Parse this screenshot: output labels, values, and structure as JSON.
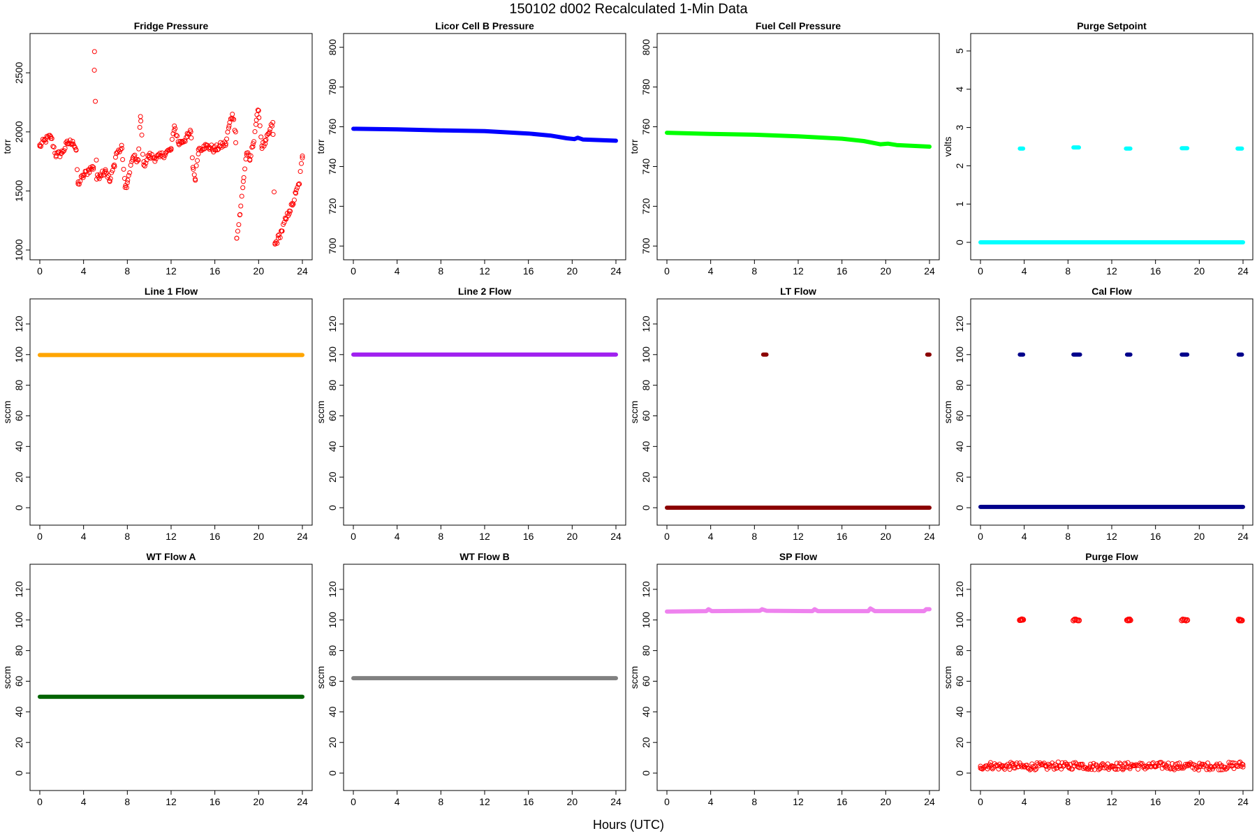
{
  "figure": {
    "title": "150102   d002   Recalculated 1-Min Data",
    "xlabel": "Hours (UTC)"
  },
  "chart_data": [
    {
      "type": "scatter",
      "title": "Fridge Pressure",
      "ylabel": "torr",
      "color": "#ff0000",
      "marker": "open-circle",
      "xlim": [
        0,
        24
      ],
      "ylim": [
        1000,
        2750
      ],
      "xticks": [
        0,
        4,
        8,
        12,
        16,
        20,
        24
      ],
      "yticks": [
        1000,
        1500,
        2000,
        2500
      ],
      "series": [
        {
          "points": [
            [
              0,
              1880
            ],
            [
              0.5,
              1930
            ],
            [
              1,
              1960
            ],
            [
              1.5,
              1800
            ],
            [
              2,
              1820
            ],
            [
              2.5,
              1900
            ],
            [
              3,
              1920
            ],
            [
              3.3,
              1850
            ],
            [
              3.5,
              1560
            ],
            [
              4,
              1630
            ],
            [
              4.5,
              1680
            ],
            [
              4.9,
              1700
            ],
            [
              5,
              2680
            ],
            [
              5.2,
              1600
            ],
            [
              5.5,
              1640
            ],
            [
              6,
              1680
            ],
            [
              6.4,
              1580
            ],
            [
              6.8,
              1720
            ],
            [
              7,
              1820
            ],
            [
              7.5,
              1860
            ],
            [
              7.8,
              1530
            ],
            [
              8,
              1570
            ],
            [
              8.5,
              1780
            ],
            [
              9,
              1760
            ],
            [
              9.2,
              2130
            ],
            [
              9.5,
              1720
            ],
            [
              10,
              1800
            ],
            [
              10.5,
              1780
            ],
            [
              11,
              1790
            ],
            [
              11.5,
              1820
            ],
            [
              12,
              1850
            ],
            [
              12.3,
              2050
            ],
            [
              12.7,
              1900
            ],
            [
              13,
              1920
            ],
            [
              13.5,
              1960
            ],
            [
              13.8,
              2000
            ],
            [
              14,
              1700
            ],
            [
              14.2,
              1600
            ],
            [
              14.5,
              1850
            ],
            [
              15,
              1880
            ],
            [
              15.5,
              1870
            ],
            [
              16,
              1850
            ],
            [
              16.5,
              1880
            ],
            [
              17,
              1900
            ],
            [
              17.3,
              2050
            ],
            [
              17.6,
              2150
            ],
            [
              17.9,
              2000
            ],
            [
              18,
              1100
            ],
            [
              18.3,
              1300
            ],
            [
              18.6,
              1580
            ],
            [
              18.9,
              1820
            ],
            [
              19.2,
              1760
            ],
            [
              19.5,
              1900
            ],
            [
              19.8,
              2100
            ],
            [
              20,
              2180
            ],
            [
              20.3,
              1880
            ],
            [
              20.6,
              1900
            ],
            [
              21,
              2000
            ],
            [
              21.3,
              2080
            ],
            [
              21.5,
              1050
            ],
            [
              21.8,
              1100
            ],
            [
              22.1,
              1160
            ],
            [
              22.5,
              1260
            ],
            [
              22.8,
              1330
            ],
            [
              23.1,
              1380
            ],
            [
              23.4,
              1480
            ],
            [
              23.7,
              1560
            ],
            [
              24,
              1780
            ]
          ]
        }
      ]
    },
    {
      "type": "scatter",
      "title": "Licor Cell B Pressure",
      "ylabel": "torr",
      "color": "#0000ff",
      "marker": "filled-band",
      "xlim": [
        0,
        24
      ],
      "ylim": [
        698,
        802
      ],
      "xticks": [
        0,
        4,
        8,
        12,
        16,
        20,
        24
      ],
      "yticks": [
        700,
        720,
        740,
        760,
        780,
        800
      ],
      "series": [
        {
          "points": [
            [
              0,
              759
            ],
            [
              4,
              758.7
            ],
            [
              8,
              758.2
            ],
            [
              12,
              757.8
            ],
            [
              16,
              756.6
            ],
            [
              18,
              755.6
            ],
            [
              19.5,
              754.2
            ],
            [
              20.2,
              753.8
            ],
            [
              20.5,
              754.5
            ],
            [
              21,
              753.6
            ],
            [
              24,
              753
            ]
          ]
        }
      ]
    },
    {
      "type": "scatter",
      "title": "Fuel Cell Pressure",
      "ylabel": "torr",
      "color": "#00ff00",
      "marker": "filled-band",
      "xlim": [
        0,
        24
      ],
      "ylim": [
        698,
        802
      ],
      "xticks": [
        0,
        4,
        8,
        12,
        16,
        20,
        24
      ],
      "yticks": [
        700,
        720,
        740,
        760,
        780,
        800
      ],
      "series": [
        {
          "points": [
            [
              0,
              757
            ],
            [
              4,
              756.4
            ],
            [
              8,
              756
            ],
            [
              12,
              755.2
            ],
            [
              16,
              754
            ],
            [
              18,
              752.8
            ],
            [
              19.5,
              751.2
            ],
            [
              20.2,
              751.5
            ],
            [
              21,
              750.8
            ],
            [
              24,
              750
            ]
          ]
        }
      ]
    },
    {
      "type": "scatter",
      "title": "Purge Setpoint",
      "ylabel": "volts",
      "color": "#00ffff",
      "marker": "filled-band",
      "xlim": [
        0,
        24
      ],
      "ylim": [
        -0.2,
        5.2
      ],
      "xticks": [
        0,
        4,
        8,
        12,
        16,
        20,
        24
      ],
      "yticks": [
        0,
        1,
        2,
        3,
        4,
        5
      ],
      "series": [
        {
          "points": [
            [
              0,
              0
            ],
            [
              24,
              0
            ]
          ]
        },
        {
          "clusters": [
            [
              3.6,
              3.9,
              2.45
            ],
            [
              8.5,
              9.0,
              2.48
            ],
            [
              13.3,
              13.7,
              2.45
            ],
            [
              18.4,
              18.9,
              2.46
            ],
            [
              23.5,
              23.9,
              2.45
            ]
          ]
        }
      ]
    },
    {
      "type": "scatter",
      "title": "Line 1 Flow",
      "ylabel": "sccm",
      "color": "#ffa500",
      "marker": "filled-band",
      "xlim": [
        0,
        24
      ],
      "ylim": [
        -5,
        130
      ],
      "xticks": [
        0,
        4,
        8,
        12,
        16,
        20,
        24
      ],
      "yticks": [
        0,
        20,
        40,
        60,
        80,
        100,
        120
      ],
      "series": [
        {
          "points": [
            [
              0,
              99.7
            ],
            [
              24,
              99.7
            ]
          ]
        }
      ]
    },
    {
      "type": "scatter",
      "title": "Line 2 Flow",
      "ylabel": "sccm",
      "color": "#a020f0",
      "marker": "filled-band",
      "xlim": [
        0,
        24
      ],
      "ylim": [
        -5,
        130
      ],
      "xticks": [
        0,
        4,
        8,
        12,
        16,
        20,
        24
      ],
      "yticks": [
        0,
        20,
        40,
        60,
        80,
        100,
        120
      ],
      "series": [
        {
          "points": [
            [
              0,
              100
            ],
            [
              24,
              100
            ]
          ]
        }
      ]
    },
    {
      "type": "scatter",
      "title": "LT Flow",
      "ylabel": "sccm",
      "color": "#8b0000",
      "marker": "filled-band",
      "xlim": [
        0,
        24
      ],
      "ylim": [
        -5,
        130
      ],
      "xticks": [
        0,
        4,
        8,
        12,
        16,
        20,
        24
      ],
      "yticks": [
        0,
        20,
        40,
        60,
        80,
        100,
        120
      ],
      "series": [
        {
          "points": [
            [
              0,
              0
            ],
            [
              24,
              0
            ]
          ]
        },
        {
          "clusters": [
            [
              8.8,
              9.1,
              100
            ],
            [
              23.8,
              24,
              100
            ]
          ]
        }
      ]
    },
    {
      "type": "scatter",
      "title": "Cal Flow",
      "ylabel": "sccm",
      "color": "#00008b",
      "marker": "filled-band",
      "xlim": [
        0,
        24
      ],
      "ylim": [
        -5,
        130
      ],
      "xticks": [
        0,
        4,
        8,
        12,
        16,
        20,
        24
      ],
      "yticks": [
        0,
        20,
        40,
        60,
        80,
        100,
        120
      ],
      "series": [
        {
          "points": [
            [
              0,
              0.5
            ],
            [
              24,
              0.5
            ]
          ]
        },
        {
          "clusters": [
            [
              3.6,
              3.9,
              100
            ],
            [
              8.5,
              9.1,
              100
            ],
            [
              13.4,
              13.7,
              100
            ],
            [
              18.4,
              18.9,
              100
            ],
            [
              23.6,
              23.9,
              100
            ]
          ]
        }
      ]
    },
    {
      "type": "scatter",
      "title": "WT Flow A",
      "ylabel": "sccm",
      "color": "#006400",
      "marker": "filled-band",
      "xlim": [
        0,
        24
      ],
      "ylim": [
        -5,
        130
      ],
      "xticks": [
        0,
        4,
        8,
        12,
        16,
        20,
        24
      ],
      "yticks": [
        0,
        20,
        40,
        60,
        80,
        100,
        120
      ],
      "series": [
        {
          "points": [
            [
              0,
              49.8
            ],
            [
              24,
              49.8
            ]
          ]
        }
      ]
    },
    {
      "type": "scatter",
      "title": "WT Flow B",
      "ylabel": "sccm",
      "color": "#808080",
      "marker": "filled-band",
      "xlim": [
        0,
        24
      ],
      "ylim": [
        -5,
        130
      ],
      "xticks": [
        0,
        4,
        8,
        12,
        16,
        20,
        24
      ],
      "yticks": [
        0,
        20,
        40,
        60,
        80,
        100,
        120
      ],
      "series": [
        {
          "points": [
            [
              0,
              62
            ],
            [
              24,
              62
            ]
          ]
        }
      ]
    },
    {
      "type": "scatter",
      "title": "SP Flow",
      "ylabel": "sccm",
      "color": "#ee82ee",
      "marker": "filled-band",
      "xlim": [
        0,
        24
      ],
      "ylim": [
        -5,
        130
      ],
      "xticks": [
        0,
        4,
        8,
        12,
        16,
        20,
        24
      ],
      "yticks": [
        0,
        20,
        40,
        60,
        80,
        100,
        120
      ],
      "series": [
        {
          "points": [
            [
              0,
              105.5
            ],
            [
              3.6,
              105.8
            ],
            [
              3.8,
              107
            ],
            [
              4.1,
              105.8
            ],
            [
              8.5,
              106
            ],
            [
              8.7,
              107
            ],
            [
              9.1,
              106
            ],
            [
              13.3,
              105.8
            ],
            [
              13.5,
              107
            ],
            [
              13.8,
              105.8
            ],
            [
              18.4,
              105.8
            ],
            [
              18.6,
              107.5
            ],
            [
              19,
              105.8
            ],
            [
              23.5,
              105.8
            ],
            [
              23.7,
              107
            ],
            [
              24,
              107
            ]
          ]
        }
      ]
    },
    {
      "type": "scatter",
      "title": "Purge Flow",
      "ylabel": "sccm",
      "color": "#ff0000",
      "marker": "open-circle",
      "xlim": [
        0,
        24
      ],
      "ylim": [
        -5,
        130
      ],
      "xticks": [
        0,
        4,
        8,
        12,
        16,
        20,
        24
      ],
      "yticks": [
        0,
        20,
        40,
        60,
        80,
        100,
        120
      ],
      "series": [
        {
          "points": [
            [
              0,
              4.5
            ],
            [
              1,
              5
            ],
            [
              2,
              4.2
            ],
            [
              3,
              4.8
            ],
            [
              4,
              4
            ],
            [
              5,
              4.5
            ],
            [
              6,
              4.2
            ],
            [
              7,
              5
            ],
            [
              8,
              4.4
            ],
            [
              9,
              5.5
            ],
            [
              10,
              4.2
            ],
            [
              11,
              4.6
            ],
            [
              12,
              4.8
            ],
            [
              13,
              4.3
            ],
            [
              14,
              5
            ],
            [
              15,
              4.4
            ],
            [
              16,
              4.6
            ],
            [
              17,
              5
            ],
            [
              18,
              4.3
            ],
            [
              19,
              4.8
            ],
            [
              20,
              4.2
            ],
            [
              21,
              4.6
            ],
            [
              22,
              4.4
            ],
            [
              23,
              4.9
            ],
            [
              24,
              5.5
            ]
          ]
        },
        {
          "clusters": [
            [
              3.6,
              3.9,
              100
            ],
            [
              8.5,
              9.0,
              100
            ],
            [
              13.4,
              13.7,
              100
            ],
            [
              18.4,
              18.9,
              100
            ],
            [
              23.6,
              23.9,
              100
            ]
          ]
        }
      ]
    }
  ]
}
